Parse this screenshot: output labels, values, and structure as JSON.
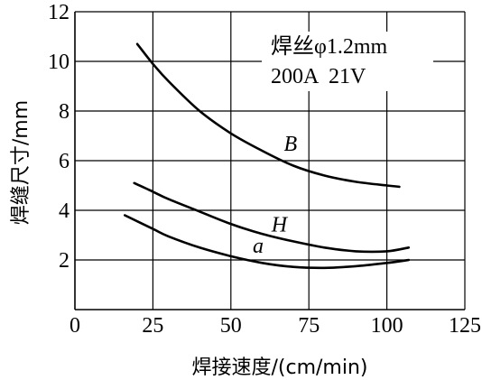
{
  "chart_data": {
    "type": "line",
    "title": "",
    "xlabel": "焊接速度/(cm/min)",
    "ylabel": "焊缝尺寸/mm",
    "xlim": [
      0,
      125
    ],
    "ylim": [
      0,
      12
    ],
    "xticks": [
      0,
      25,
      50,
      75,
      100,
      125
    ],
    "yticks": [
      2,
      4,
      6,
      8,
      10,
      12
    ],
    "xtick_labels": [
      "0",
      "25",
      "50",
      "75",
      "100",
      "125"
    ],
    "ytick_labels": [
      "2",
      "4",
      "6",
      "8",
      "10",
      "12"
    ],
    "grid": true,
    "legend": "none",
    "annotation": {
      "line1": "焊丝φ1.2mm",
      "line2": "200A  21V"
    },
    "series": [
      {
        "name": "B",
        "label_at": [
          67,
          6.4
        ],
        "x": [
          20,
          25,
          30,
          40,
          50,
          60,
          70,
          80,
          90,
          100,
          104
        ],
        "y": [
          10.7,
          9.9,
          9.2,
          8.0,
          7.1,
          6.4,
          5.8,
          5.4,
          5.15,
          5.0,
          4.95
        ]
      },
      {
        "name": "H",
        "label_at": [
          63,
          3.15
        ],
        "x": [
          19,
          25,
          30,
          40,
          50,
          60,
          70,
          80,
          90,
          100,
          107
        ],
        "y": [
          5.1,
          4.75,
          4.45,
          3.95,
          3.45,
          3.05,
          2.75,
          2.5,
          2.35,
          2.35,
          2.5
        ]
      },
      {
        "name": "a",
        "label_at": [
          57,
          2.3
        ],
        "x": [
          16,
          25,
          30,
          40,
          50,
          60,
          70,
          80,
          90,
          100,
          107
        ],
        "y": [
          3.8,
          3.25,
          2.95,
          2.5,
          2.15,
          1.88,
          1.72,
          1.68,
          1.75,
          1.88,
          2.0
        ]
      }
    ]
  }
}
